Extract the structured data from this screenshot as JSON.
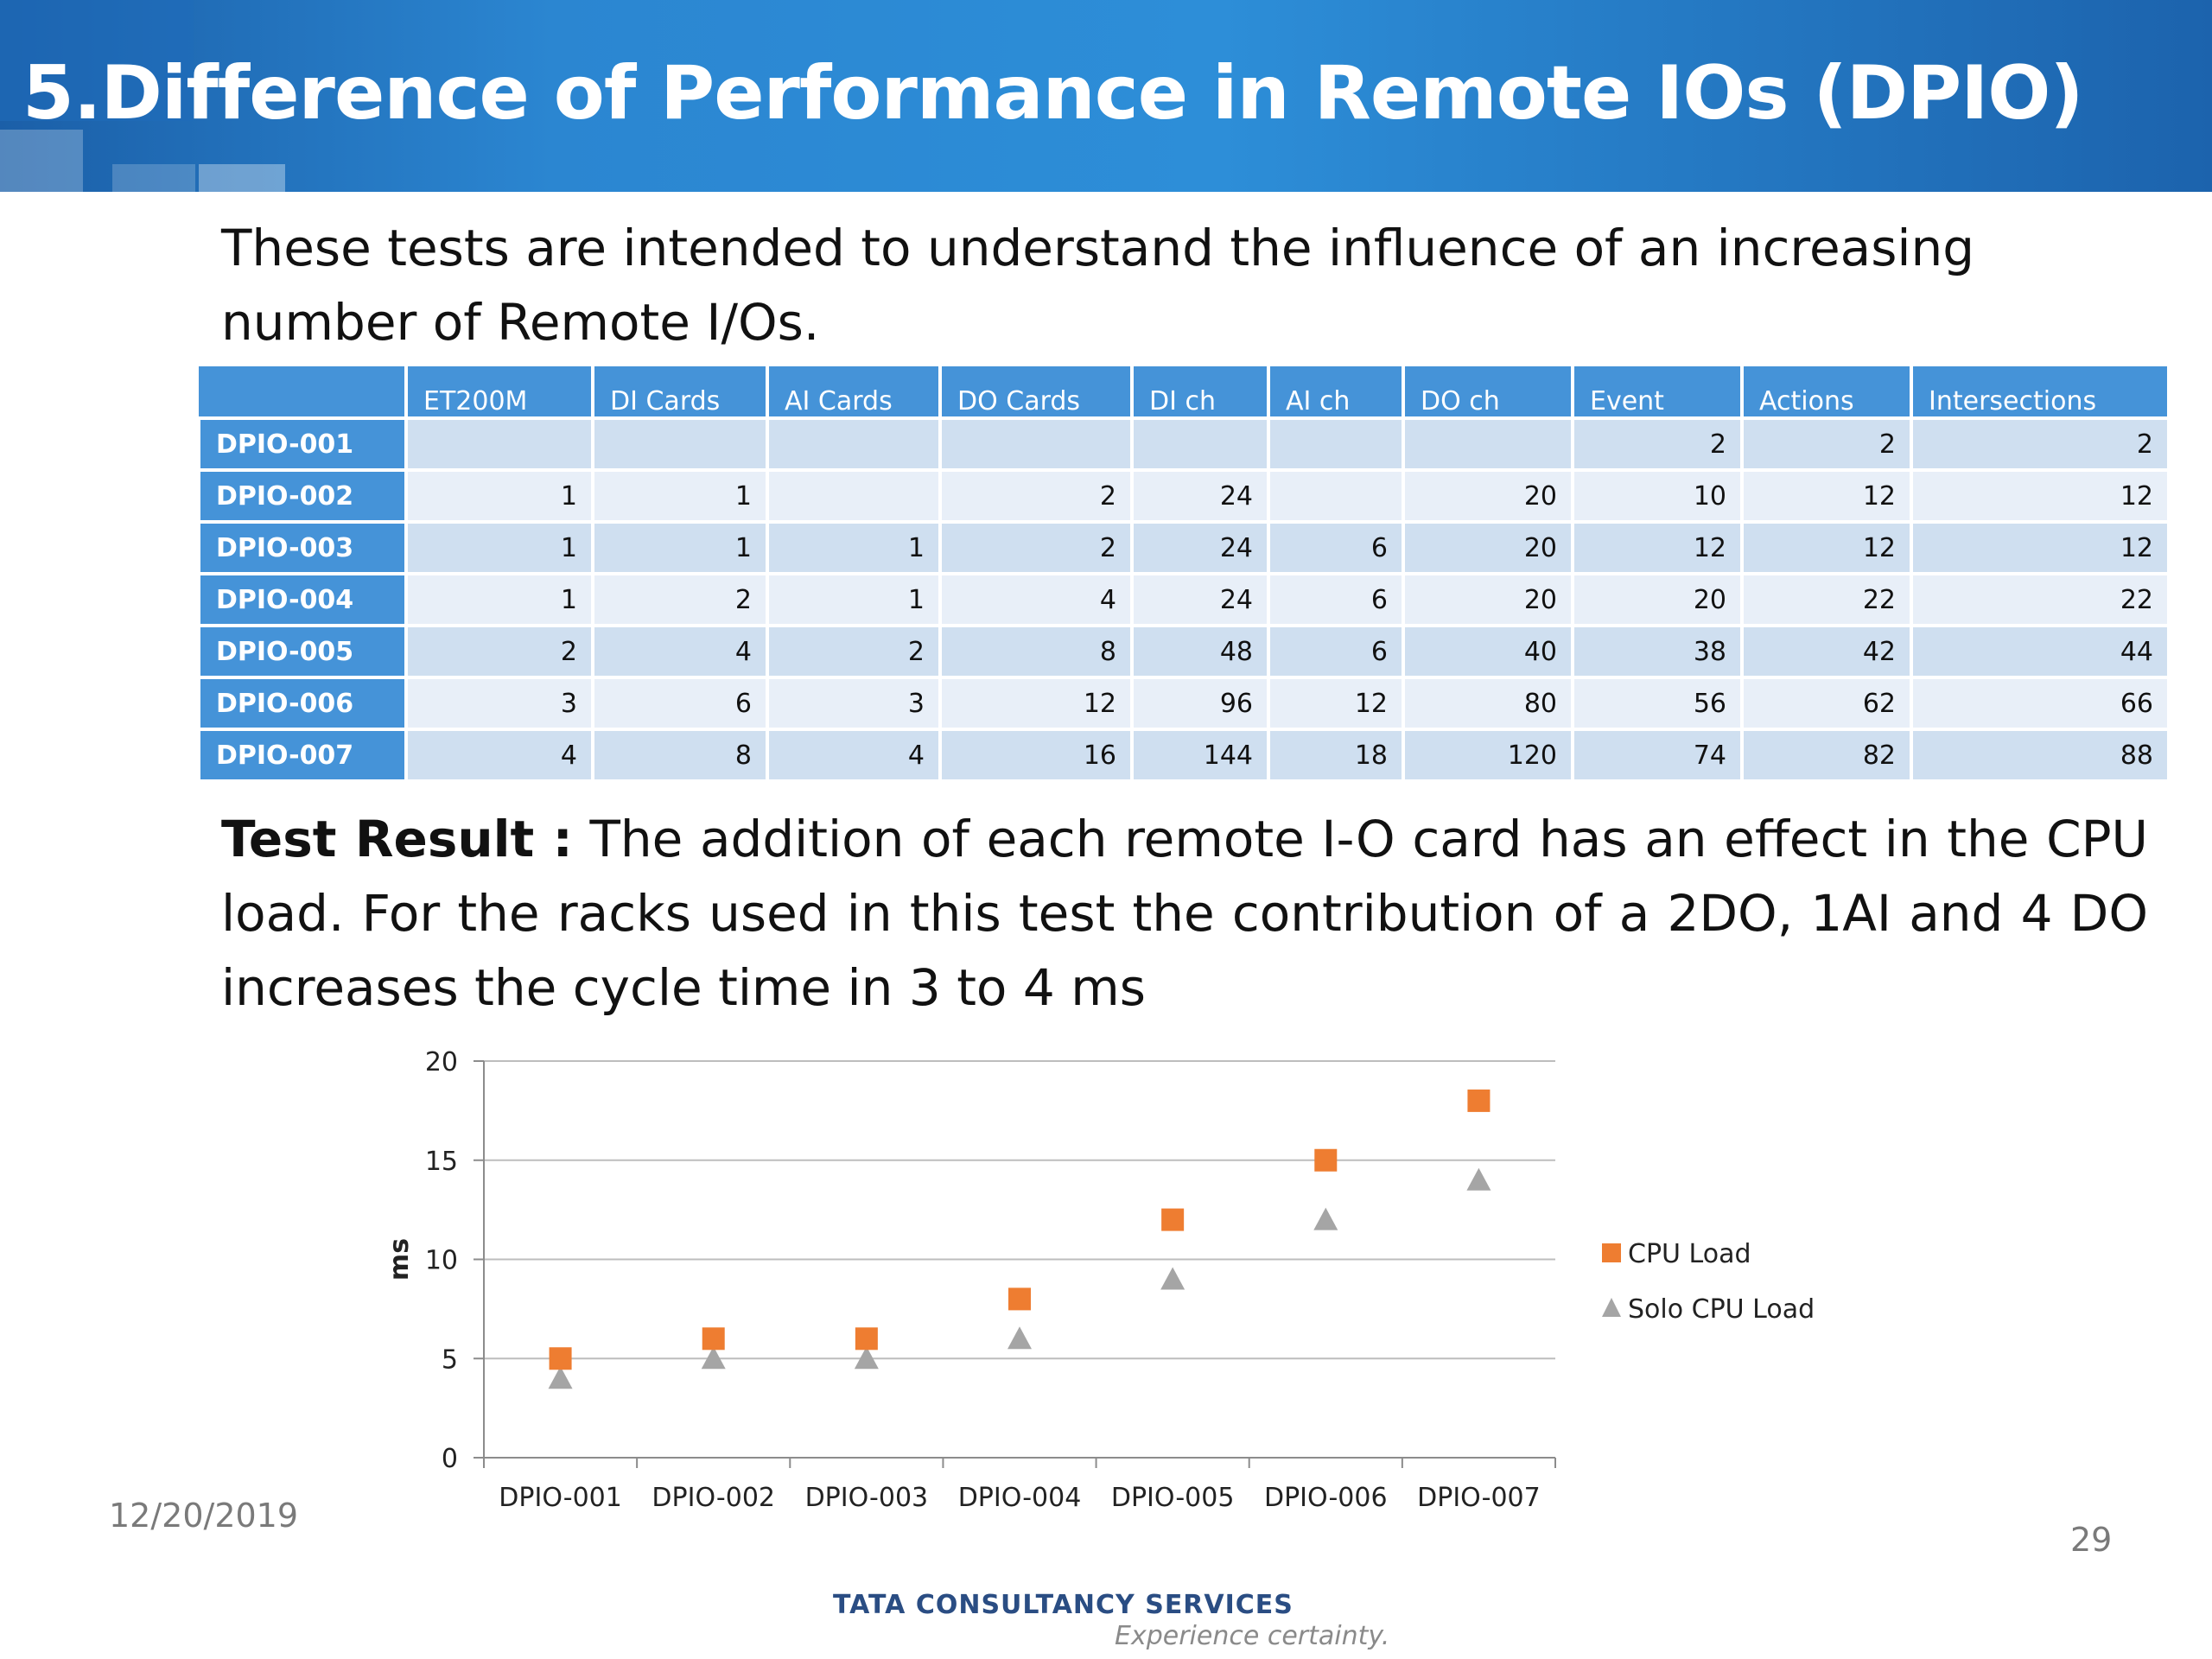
{
  "slide": {
    "title": "5.Difference of Performance in Remote IOs (DPIO)",
    "intro": "These tests are intended to understand the influence of an increasing number of Remote I/Os.",
    "result_label": "Test Result :",
    "result_text": " The addition of each remote I-O card has an effect in the CPU load. For the racks used in this test the contribution of a 2DO, 1AI and 4 DO increases the cycle time in 3 to 4 ms",
    "date": "12/20/2019",
    "page_number": "29",
    "logo_text": "TATA CONSULTANCY SERVICES",
    "logo_tagline": "Experience certainty."
  },
  "table": {
    "headers": [
      "",
      "ET200M",
      "DI Cards",
      "AI Cards",
      "DO Cards",
      "DI ch",
      "AI ch",
      "DO ch",
      "Event",
      "Actions",
      "Intersections"
    ],
    "rows": [
      [
        "DPIO-001",
        "",
        "",
        "",
        "",
        "",
        "",
        "",
        "2",
        "2",
        "2"
      ],
      [
        "DPIO-002",
        "1",
        "1",
        "",
        "2",
        "24",
        "",
        "20",
        "10",
        "12",
        "12"
      ],
      [
        "DPIO-003",
        "1",
        "1",
        "1",
        "2",
        "24",
        "6",
        "20",
        "12",
        "12",
        "12"
      ],
      [
        "DPIO-004",
        "1",
        "2",
        "1",
        "4",
        "24",
        "6",
        "20",
        "20",
        "22",
        "22"
      ],
      [
        "DPIO-005",
        "2",
        "4",
        "2",
        "8",
        "48",
        "6",
        "40",
        "38",
        "42",
        "44"
      ],
      [
        "DPIO-006",
        "3",
        "6",
        "3",
        "12",
        "96",
        "12",
        "80",
        "56",
        "62",
        "66"
      ],
      [
        "DPIO-007",
        "4",
        "8",
        "4",
        "16",
        "144",
        "18",
        "120",
        "74",
        "82",
        "88"
      ]
    ]
  },
  "colors": {
    "header_blue": "#2b86d1",
    "table_header": "#4593d8",
    "row_odd": "#cfdff0",
    "row_even": "#e8eff8",
    "cpu_load": "#ee7d31",
    "solo_cpu_load": "#a5a5a5"
  },
  "chart_data": {
    "type": "scatter",
    "categories": [
      "DPIO-001",
      "DPIO-002",
      "DPIO-003",
      "DPIO-004",
      "DPIO-005",
      "DPIO-006",
      "DPIO-007"
    ],
    "series": [
      {
        "name": "CPU Load",
        "marker": "square",
        "color": "#ee7d31",
        "values": [
          5,
          6,
          6,
          8,
          12,
          15,
          18
        ]
      },
      {
        "name": "Solo CPU Load",
        "marker": "triangle",
        "color": "#a5a5a5",
        "values": [
          4,
          5,
          5,
          6,
          9,
          12,
          14
        ]
      }
    ],
    "ylabel": "ms",
    "xlabel": "",
    "ylim": [
      0,
      20
    ],
    "yticks": [
      0,
      5,
      10,
      15,
      20
    ],
    "grid": true,
    "legend_position": "right"
  }
}
